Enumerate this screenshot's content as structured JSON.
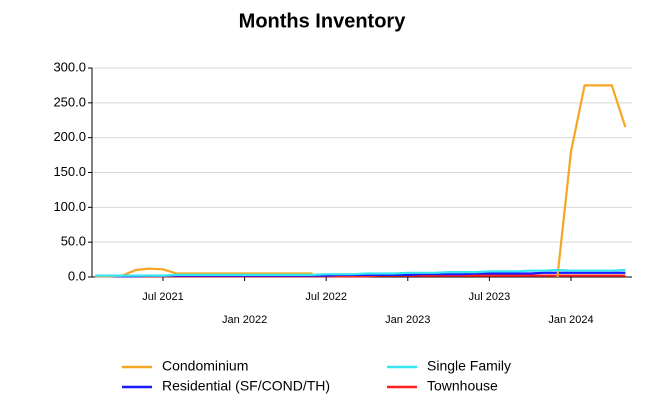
{
  "chart_data": {
    "type": "line",
    "title": "Months Inventory",
    "categories": [
      null,
      null,
      null,
      null,
      null,
      "Jul 2021",
      null,
      null,
      null,
      null,
      null,
      "Jan 2022",
      null,
      null,
      null,
      null,
      null,
      "Jul 2022",
      null,
      null,
      null,
      null,
      null,
      "Jan 2023",
      null,
      null,
      null,
      null,
      null,
      "Jul 2023",
      null,
      null,
      null,
      null,
      null,
      "Jan 2024",
      null,
      null,
      null,
      null
    ],
    "series": [
      {
        "name": "Townhouse",
        "color": "#ff2020",
        "values": [
          1,
          1,
          1,
          1,
          1,
          1,
          1,
          1,
          1,
          1,
          1,
          1,
          1,
          1,
          1,
          1,
          1,
          1,
          1,
          1,
          1,
          2,
          2,
          2,
          2,
          2,
          2,
          2,
          2,
          2,
          2,
          2,
          2,
          2,
          2,
          2,
          2,
          2,
          2,
          2
        ]
      },
      {
        "name": "Residential (SF/COND/TH)",
        "color": "#1a1aff",
        "values": [
          1,
          1,
          1,
          1,
          2,
          2,
          2,
          2,
          2,
          2,
          2,
          2,
          2,
          2,
          2,
          2,
          2,
          2,
          3,
          3,
          3,
          3,
          3,
          3,
          4,
          4,
          4,
          4,
          5,
          5,
          5,
          5,
          5,
          6,
          6,
          6,
          6,
          6,
          6,
          6
        ]
      },
      {
        "name": "Condominium",
        "color": "#f5a623",
        "values": [
          1,
          1,
          2,
          10,
          12,
          11,
          5,
          5,
          5,
          5,
          5,
          5,
          5,
          5,
          5,
          5,
          5,
          null,
          null,
          null,
          null,
          null,
          null,
          null,
          null,
          null,
          null,
          null,
          null,
          null,
          null,
          null,
          null,
          null,
          0,
          180,
          275,
          275,
          275,
          215
        ]
      },
      {
        "name": "Single Family",
        "color": "#33e6f0",
        "values": [
          2,
          2,
          2,
          2,
          2,
          2,
          3,
          3,
          3,
          3,
          3,
          3,
          3,
          3,
          3,
          3,
          3,
          4,
          4,
          4,
          5,
          5,
          5,
          6,
          6,
          6,
          7,
          7,
          7,
          8,
          8,
          8,
          9,
          9,
          10,
          9,
          9,
          9,
          9,
          10
        ]
      }
    ],
    "legend_order": [
      2,
      3,
      1,
      0
    ],
    "ylim": [
      0,
      300
    ],
    "yticks": [
      {
        "value": 0,
        "label": "0.0"
      },
      {
        "value": 50,
        "label": "50.0"
      },
      {
        "value": 100,
        "label": "100.0"
      },
      {
        "value": 150,
        "label": "150.0"
      },
      {
        "value": 200,
        "label": "200.0"
      },
      {
        "value": 250,
        "label": "250.0"
      },
      {
        "value": 300,
        "label": "300.0"
      }
    ],
    "grid": true
  }
}
